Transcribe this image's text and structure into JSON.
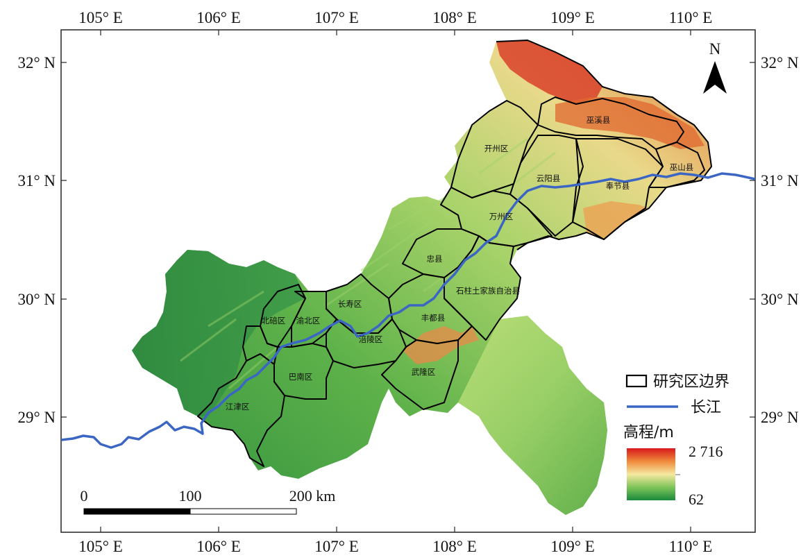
{
  "axes": {
    "top_lon_labels": [
      "105° E",
      "106° E",
      "107° E",
      "108° E",
      "109° E",
      "110° E"
    ],
    "bottom_lon_labels": [
      "105° E",
      "106° E",
      "107° E",
      "108° E",
      "109° E",
      "110° E"
    ],
    "left_lat_labels": [
      "32° N",
      "31° N",
      "30° N",
      "29° N"
    ],
    "right_lat_labels": [
      "32° N",
      "31° N",
      "30° N",
      "29° N"
    ]
  },
  "north_arrow": {
    "label": "N",
    "icon": "north-arrow-icon"
  },
  "districts": [
    {
      "name": "巫溪县"
    },
    {
      "name": "开州区"
    },
    {
      "name": "巫山县"
    },
    {
      "name": "云阳县"
    },
    {
      "name": "奉节县"
    },
    {
      "name": "万州区"
    },
    {
      "name": "忠县"
    },
    {
      "name": "石柱土家族自治县"
    },
    {
      "name": "长寿区"
    },
    {
      "name": "北碚区"
    },
    {
      "name": "渝北区"
    },
    {
      "name": "丰都县"
    },
    {
      "name": "涪陵区"
    },
    {
      "name": "武隆区"
    },
    {
      "name": "巴南区"
    },
    {
      "name": "江津区"
    }
  ],
  "legend": {
    "boundary_label": "研究区边界",
    "river_label": "长江",
    "elevation_title": "高程/m",
    "elevation_max": "2 716",
    "elevation_min": "62",
    "colors": {
      "high": "#d7191c",
      "mid": "#f5e9a0",
      "low": "#1a8a3c",
      "river": "#3b66c4",
      "boundary": "#000000"
    }
  },
  "scalebar": {
    "labels": [
      "0",
      "100",
      "200 km"
    ]
  }
}
